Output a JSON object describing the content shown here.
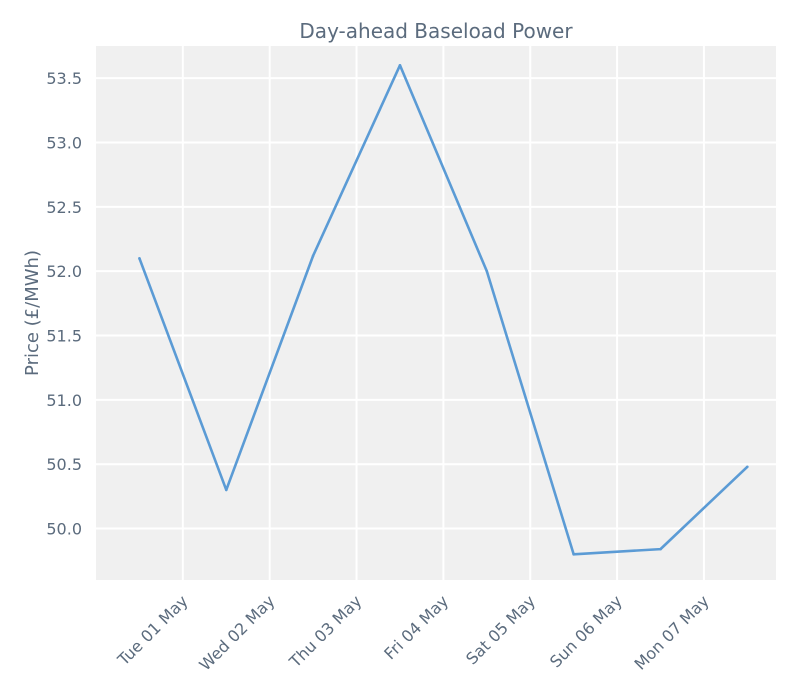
{
  "chart_data": {
    "type": "line",
    "title": "Day-ahead Baseload Power",
    "xlabel": "",
    "ylabel": "Price (£/MWh)",
    "x": [
      "2018-04-30T12:00",
      "2018-05-01T12:00",
      "2018-05-02T12:00",
      "2018-05-03T12:00",
      "2018-05-04T12:00",
      "2018-05-05T12:00",
      "2018-05-06T12:00",
      "2018-05-07T12:00"
    ],
    "values": [
      52.1,
      50.3,
      52.12,
      53.6,
      52.0,
      49.8,
      49.84,
      50.48
    ],
    "xticks": [
      "Tue 01 May",
      "Wed 02 May",
      "Thu 03 May",
      "Fri 04 May",
      "Sat 05 May",
      "Sun 06 May",
      "Mon 07 May"
    ],
    "yticks": [
      "50.0",
      "50.5",
      "51.0",
      "51.5",
      "52.0",
      "52.5",
      "53.0",
      "53.5"
    ],
    "ylim": [
      49.6,
      53.75
    ],
    "grid": true,
    "colors": {
      "line": "#5b9bd5",
      "plot_bg": "#f0f0f0",
      "grid": "#ffffff",
      "text": "#5b6b7d"
    }
  }
}
